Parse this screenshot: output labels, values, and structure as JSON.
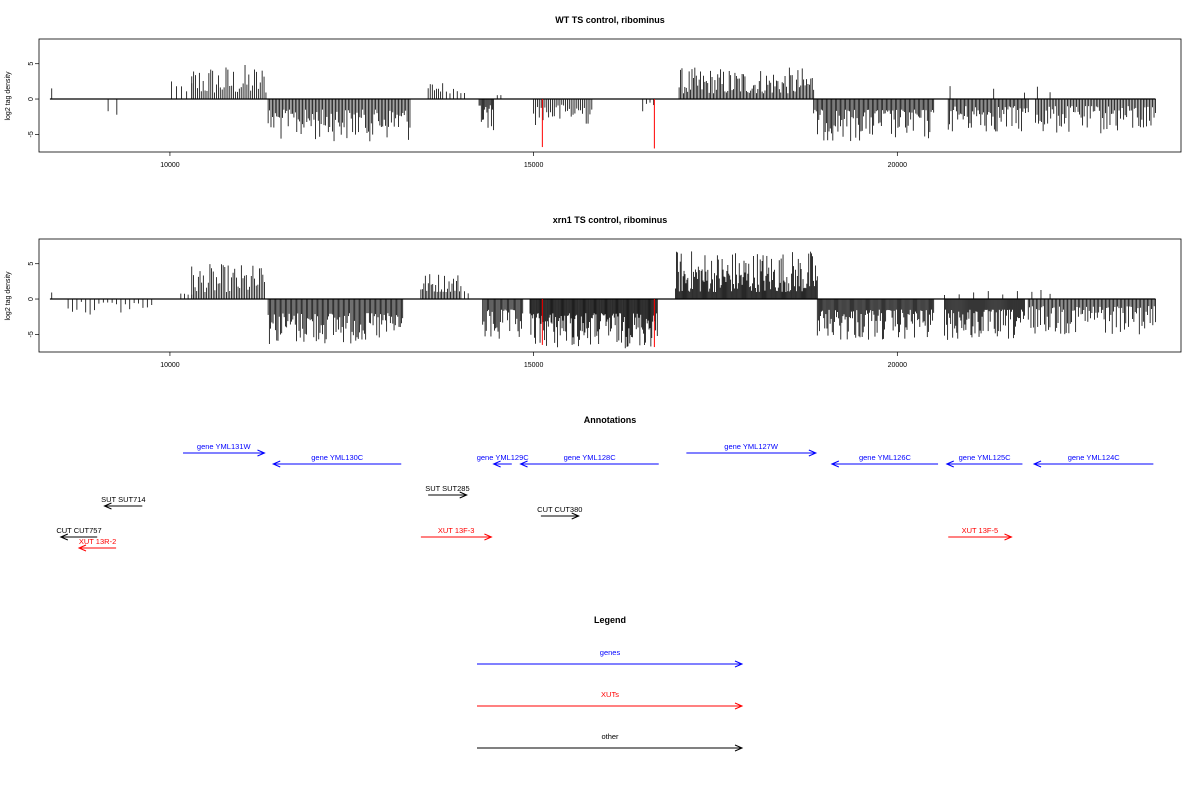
{
  "chart_data": [
    {
      "type": "bar",
      "title": "WT TS control, ribominus",
      "ylabel": "log2 tag density",
      "xlim": [
        8200,
        23900
      ],
      "ylim": [
        -7.5,
        8.5
      ],
      "x_ticks": [
        10000,
        15000,
        20000
      ],
      "x_tick_labels": [
        "10000",
        "15000",
        "20000"
      ],
      "y_ticks": [
        5,
        0,
        -5
      ],
      "y_tick_labels": [
        "5",
        "0",
        "-5"
      ],
      "baseline": 0,
      "series": [
        {
          "color": "#000000",
          "segments": [
            {
              "start": 8350,
              "end": 8400,
              "sign": 1,
              "min": 1.2,
              "max": 1.8,
              "count": 1
            },
            {
              "start": 9150,
              "end": 9270,
              "sign": -1,
              "min": 1.5,
              "max": 3.0,
              "count": 2
            },
            {
              "start": 10020,
              "end": 10300,
              "sign": 1,
              "min": 1.0,
              "max": 2.5,
              "count": 5
            },
            {
              "start": 10300,
              "end": 11320,
              "sign": 1,
              "min": 0.8,
              "max": 5.0,
              "count": 40
            },
            {
              "start": 11350,
              "end": 13300,
              "sign": -1,
              "min": 1.5,
              "max": 6.0,
              "count": 100
            },
            {
              "start": 13550,
              "end": 13750,
              "sign": 1,
              "min": 1.0,
              "max": 2.5,
              "count": 8
            },
            {
              "start": 13800,
              "end": 14050,
              "sign": 1,
              "min": 0.8,
              "max": 2.2,
              "count": 6
            },
            {
              "start": 14250,
              "end": 14450,
              "sign": -1,
              "min": 0.8,
              "max": 4.5,
              "count": 14
            },
            {
              "start": 14500,
              "end": 14550,
              "sign": 1,
              "min": 0.5,
              "max": 1.0,
              "count": 2
            },
            {
              "start": 15000,
              "end": 15800,
              "sign": -1,
              "min": 0.8,
              "max": 3.8,
              "count": 32
            },
            {
              "start": 16500,
              "end": 16650,
              "sign": -1,
              "min": 0.5,
              "max": 2.0,
              "count": 4
            },
            {
              "start": 17000,
              "end": 18850,
              "sign": 1,
              "min": 0.8,
              "max": 4.5,
              "count": 95
            },
            {
              "start": 18850,
              "end": 20500,
              "sign": -1,
              "min": 1.5,
              "max": 6.0,
              "count": 95
            },
            {
              "start": 20700,
              "end": 21800,
              "sign": -1,
              "min": 1.0,
              "max": 4.8,
              "count": 60
            },
            {
              "start": 21900,
              "end": 23550,
              "sign": -1,
              "min": 1.0,
              "max": 5.0,
              "count": 80
            },
            {
              "start": 20700,
              "end": 20750,
              "sign": 1,
              "min": 1.0,
              "max": 2.0,
              "count": 1
            },
            {
              "start": 21300,
              "end": 21350,
              "sign": 1,
              "min": 1.0,
              "max": 2.0,
              "count": 1
            },
            {
              "start": 21750,
              "end": 22100,
              "sign": 1,
              "min": 0.8,
              "max": 2.0,
              "count": 3
            }
          ]
        },
        {
          "color": "#ff0000",
          "spikes": [
            {
              "x": 15120,
              "y": -6.8
            },
            {
              "x": 16660,
              "y": -7.0
            }
          ]
        }
      ]
    },
    {
      "type": "bar",
      "title": "xrn1 TS control, ribominus",
      "ylabel": "log2 tag density",
      "xlim": [
        8200,
        23900
      ],
      "ylim": [
        -7.5,
        8.5
      ],
      "x_ticks": [
        10000,
        15000,
        20000
      ],
      "x_tick_labels": [
        "10000",
        "15000",
        "20000"
      ],
      "y_ticks": [
        5,
        0,
        -5
      ],
      "y_tick_labels": [
        "5",
        "0",
        "-5"
      ],
      "baseline": 0,
      "series": [
        {
          "color": "#000000",
          "segments": [
            {
              "start": 8350,
              "end": 8400,
              "sign": 1,
              "min": 0.5,
              "max": 1.0,
              "count": 1
            },
            {
              "start": 8600,
              "end": 9750,
              "sign": -1,
              "min": 0.4,
              "max": 2.2,
              "count": 20
            },
            {
              "start": 10150,
              "end": 10300,
              "sign": 1,
              "min": 0.5,
              "max": 1.5,
              "count": 4
            },
            {
              "start": 10300,
              "end": 11300,
              "sign": 1,
              "min": 1.0,
              "max": 5.0,
              "count": 45
            },
            {
              "start": 11350,
              "end": 13200,
              "sign": -1,
              "min": 2.0,
              "max": 6.5,
              "count": 110
            },
            {
              "start": 13450,
              "end": 14000,
              "sign": 1,
              "min": 1.0,
              "max": 3.8,
              "count": 28
            },
            {
              "start": 14050,
              "end": 14100,
              "sign": 1,
              "min": 0.8,
              "max": 1.5,
              "count": 2
            },
            {
              "start": 14300,
              "end": 14850,
              "sign": -1,
              "min": 1.5,
              "max": 6.5,
              "count": 35
            },
            {
              "start": 14950,
              "end": 16700,
              "sign": -1,
              "min": 2.0,
              "max": 7.0,
              "count": 140
            },
            {
              "start": 16950,
              "end": 18900,
              "sign": 1,
              "min": 1.0,
              "max": 7.0,
              "count": 150
            },
            {
              "start": 18900,
              "end": 20500,
              "sign": -1,
              "min": 1.5,
              "max": 6.0,
              "count": 110
            },
            {
              "start": 20650,
              "end": 21750,
              "sign": -1,
              "min": 1.5,
              "max": 6.0,
              "count": 80
            },
            {
              "start": 20650,
              "end": 21650,
              "sign": 1,
              "min": 0.5,
              "max": 2.5,
              "count": 6
            },
            {
              "start": 21800,
              "end": 23550,
              "sign": -1,
              "min": 1.0,
              "max": 5.0,
              "count": 95
            },
            {
              "start": 21850,
              "end": 22100,
              "sign": 1,
              "min": 0.5,
              "max": 1.5,
              "count": 3
            }
          ]
        },
        {
          "color": "#ff0000",
          "spikes": [
            {
              "x": 15120,
              "y": -6.5
            },
            {
              "x": 16660,
              "y": -6.8
            }
          ]
        }
      ]
    },
    {
      "type": "annotation",
      "title": "Annotations",
      "xlim": [
        8200,
        23900
      ],
      "features": [
        {
          "label": "gene YML131W",
          "start": 10180,
          "end": 11300,
          "strand": "+",
          "color": "#0000ff",
          "row": 1
        },
        {
          "label": "gene YML130C",
          "start": 11420,
          "end": 13180,
          "strand": "-",
          "color": "#0000ff",
          "row": 2
        },
        {
          "label": "gene YML129C",
          "start": 14450,
          "end": 14700,
          "strand": "-",
          "color": "#0000ff",
          "row": 2
        },
        {
          "label": "gene YML128C",
          "start": 14820,
          "end": 16720,
          "strand": "-",
          "color": "#0000ff",
          "row": 2
        },
        {
          "label": "gene YML127W",
          "start": 17100,
          "end": 18880,
          "strand": "+",
          "color": "#0000ff",
          "row": 1
        },
        {
          "label": "gene YML126C",
          "start": 19100,
          "end": 20560,
          "strand": "-",
          "color": "#0000ff",
          "row": 2
        },
        {
          "label": "gene YML125C",
          "start": 20680,
          "end": 21720,
          "strand": "-",
          "color": "#0000ff",
          "row": 2
        },
        {
          "label": "gene YML124C",
          "start": 21880,
          "end": 23520,
          "strand": "-",
          "color": "#0000ff",
          "row": 2
        },
        {
          "label": "SUT SUT714",
          "start": 9100,
          "end": 9620,
          "strand": "-",
          "color": "#000000",
          "row": 4
        },
        {
          "label": "SUT SUT285",
          "start": 13550,
          "end": 14080,
          "strand": "+",
          "color": "#000000",
          "row": 3
        },
        {
          "label": "CUT CUT757",
          "start": 8500,
          "end": 9000,
          "strand": "-",
          "color": "#000000",
          "row": 6
        },
        {
          "label": "CUT CUT380",
          "start": 15100,
          "end": 15620,
          "strand": "+",
          "color": "#000000",
          "row": 5
        },
        {
          "label": "XUT 13R-2",
          "start": 8750,
          "end": 9260,
          "strand": "-",
          "color": "#ff0000",
          "row": 7
        },
        {
          "label": "XUT 13F-3",
          "start": 13450,
          "end": 14420,
          "strand": "+",
          "color": "#ff0000",
          "row": 6
        },
        {
          "label": "XUT 13F-5",
          "start": 20700,
          "end": 21570,
          "strand": "+",
          "color": "#ff0000",
          "row": 6
        }
      ]
    }
  ],
  "legend": {
    "title": "Legend",
    "items": [
      {
        "label": "genes",
        "color": "#0000ff"
      },
      {
        "label": "XUTs",
        "color": "#ff0000"
      },
      {
        "label": "other",
        "color": "#000000"
      }
    ]
  }
}
